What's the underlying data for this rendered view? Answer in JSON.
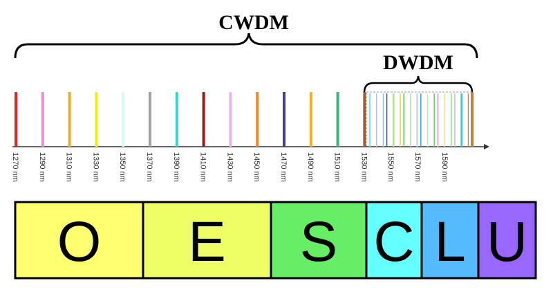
{
  "header": {
    "cwdm": "CWDM",
    "dwdm": "DWDM"
  },
  "wavelengths": [
    "1270 nm",
    "1290 nm",
    "1310 nm",
    "1330 nm",
    "1350 nm",
    "1370 nm",
    "1390 nm",
    "1410 nm",
    "1430 nm",
    "1450 nm",
    "1470 nm",
    "1490 nm",
    "1510 nm",
    "1530 nm",
    "1550 nm",
    "1570 nm",
    "1590 nm"
  ],
  "bands": [
    "O",
    "E",
    "S",
    "C",
    "L",
    "U"
  ]
}
